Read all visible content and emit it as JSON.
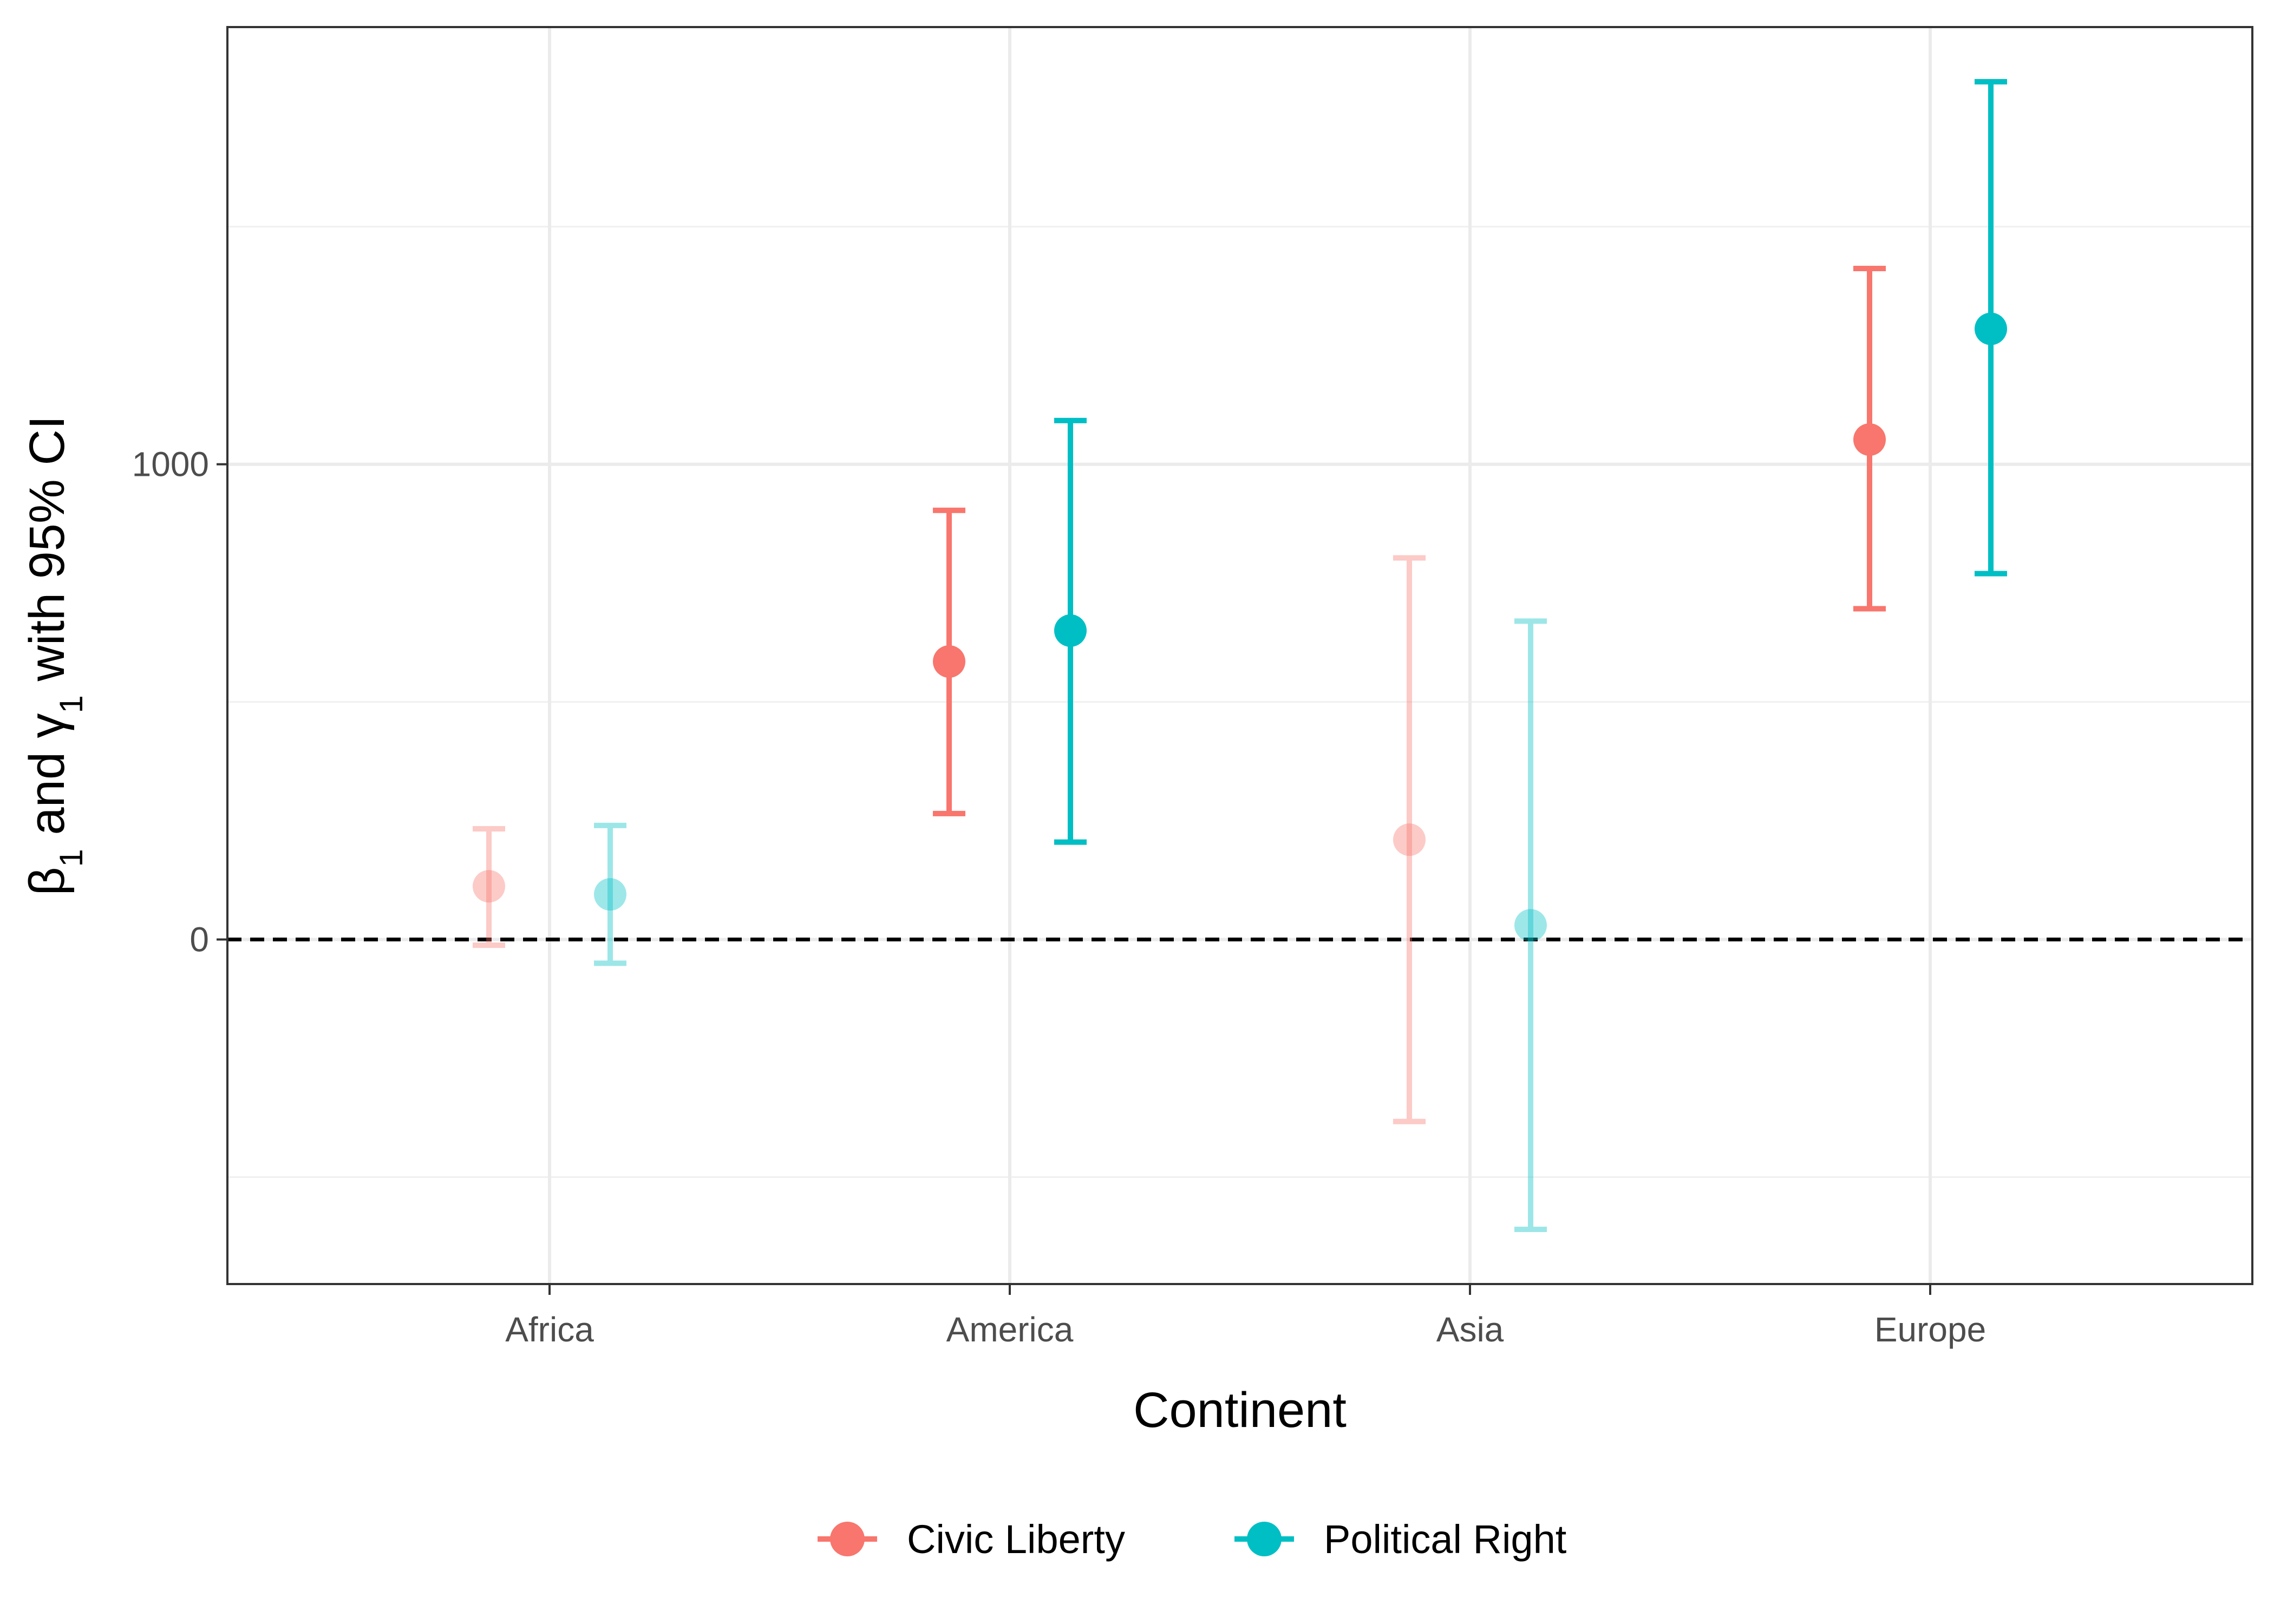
{
  "chart_data": {
    "type": "errorbar",
    "xlabel": "Continent",
    "ylabel": {
      "beta": "β",
      "sub1": "1",
      "mid": " and ",
      "gamma": "γ",
      "sub2": "1",
      "rest": " with 95% CI"
    },
    "categories": [
      "Africa",
      "America",
      "Asia",
      "Europe"
    ],
    "ylim": [
      -725,
      1920
    ],
    "yticks": [
      0,
      1000
    ],
    "grid": true,
    "reference_line": {
      "y": 0,
      "style": "dashed",
      "color": "#000000"
    },
    "legend_position": "bottom",
    "series": [
      {
        "name": "Civic Liberty",
        "color": "#F8766D",
        "points": [
          {
            "category": "Africa",
            "estimate": 112,
            "lower": -12,
            "upper": 233,
            "significant": false
          },
          {
            "category": "America",
            "estimate": 585,
            "lower": 265,
            "upper": 903,
            "significant": true
          },
          {
            "category": "Asia",
            "estimate": 210,
            "lower": -383,
            "upper": 803,
            "significant": false
          },
          {
            "category": "Europe",
            "estimate": 1052,
            "lower": 696,
            "upper": 1412,
            "significant": true
          }
        ]
      },
      {
        "name": "Political Right",
        "color": "#00BFC4",
        "points": [
          {
            "category": "Africa",
            "estimate": 95,
            "lower": -50,
            "upper": 240,
            "significant": false
          },
          {
            "category": "America",
            "estimate": 650,
            "lower": 205,
            "upper": 1092,
            "significant": true
          },
          {
            "category": "Asia",
            "estimate": 30,
            "lower": -610,
            "upper": 670,
            "significant": false
          },
          {
            "category": "Europe",
            "estimate": 1285,
            "lower": 770,
            "upper": 1805,
            "significant": true
          }
        ]
      }
    ]
  }
}
